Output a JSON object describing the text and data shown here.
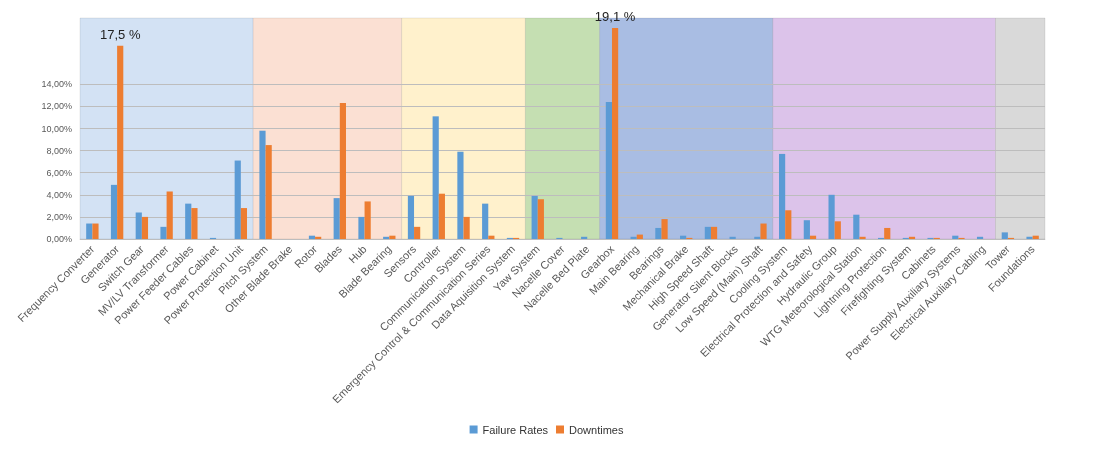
{
  "chart_data": {
    "type": "bar",
    "categories": [
      "Frequency Converter",
      "Generator",
      "Switch Gear",
      "MV/LV Transformer",
      "Power Feeder Cables",
      "Power Cabinet",
      "Power Protection Unit",
      "Pitch System",
      "Other Blade Brake",
      "Rotor",
      "Blades",
      "Hub",
      "Blade Bearing",
      "Sensors",
      "Controller",
      "Communication System",
      "Emergency Control & Communication Series",
      "Data Aquisition System",
      "Yaw System",
      "Nacelle Cover",
      "Nacelle Bed Plate",
      "Gearbox",
      "Main Bearing",
      "Bearings",
      "Mechanical Brake",
      "High Speed Shaft",
      "Generator Silent Blocks",
      "Low Speed (Main) Shaft",
      "Cooling System",
      "Electrical Protection and Safety",
      "Hydraulic Group",
      "WTG Meteorological Station",
      "Lightning Protection",
      "Firefighting System",
      "Cabinets",
      "Power Supply Auxiliary Systems",
      "Electrical Auxiliary Cabling",
      "Tower",
      "Foundations"
    ],
    "series": [
      {
        "name": "Failure Rates",
        "color": "#5b9bd5",
        "values": [
          1.4,
          4.9,
          2.4,
          1.1,
          3.2,
          0.1,
          7.1,
          9.8,
          0,
          0.3,
          3.7,
          2.0,
          0.2,
          3.9,
          11.1,
          7.9,
          3.2,
          0.1,
          3.9,
          0.1,
          0.2,
          12.4,
          0.2,
          1.0,
          0.3,
          1.1,
          0.2,
          0.2,
          7.7,
          1.7,
          4.0,
          2.2,
          0.1,
          0.1,
          0.1,
          0.3,
          0.2,
          0.6,
          0.2
        ]
      },
      {
        "name": "Downtimes",
        "color": "#ed7d31",
        "values": [
          1.4,
          17.5,
          2.0,
          4.3,
          2.8,
          0.0,
          2.8,
          8.5,
          0,
          0.2,
          12.3,
          3.4,
          0.3,
          1.1,
          4.1,
          2.0,
          0.3,
          0.1,
          3.6,
          0,
          0,
          19.1,
          0.4,
          1.8,
          0.1,
          1.1,
          0,
          1.4,
          2.6,
          0.3,
          1.6,
          0.2,
          1.0,
          0.2,
          0.1,
          0.1,
          0,
          0.1,
          0.3
        ],
        "value_labels": [
          null,
          "17,5 %",
          null,
          null,
          null,
          null,
          null,
          null,
          null,
          null,
          null,
          null,
          null,
          null,
          null,
          null,
          null,
          null,
          null,
          null,
          null,
          "19,1 %",
          null,
          null,
          null,
          null,
          null,
          null,
          null,
          null,
          null,
          null,
          null,
          null,
          null,
          null,
          null,
          null,
          null
        ]
      }
    ],
    "ylim": [
      0,
      20
    ],
    "yticks": [
      {
        "value": 0,
        "label": "0,00%"
      },
      {
        "value": 2,
        "label": "2,00%"
      },
      {
        "value": 4,
        "label": "4,00%"
      },
      {
        "value": 6,
        "label": "6,00%"
      },
      {
        "value": 8,
        "label": "8,00%"
      },
      {
        "value": 10,
        "label": "10,00%"
      },
      {
        "value": 12,
        "label": "12,00%"
      },
      {
        "value": 14,
        "label": "14,00%"
      }
    ],
    "bands": [
      {
        "axis": "x",
        "from": "Frequency Converter",
        "to": "Power Protection Unit",
        "color": "#d3e2f4"
      },
      {
        "axis": "x",
        "from": "Pitch System",
        "to": "Blade Bearing",
        "color": "#fbe0d3"
      },
      {
        "axis": "x",
        "from": "Sensors",
        "to": "Data Aquisition System",
        "color": "#fff1cc"
      },
      {
        "axis": "x",
        "from": "Yaw System",
        "to": "Nacelle Bed Plate",
        "color": "#c5dfb2"
      },
      {
        "axis": "x",
        "from": "Gearbox",
        "to": "Low Speed (Main) Shaft",
        "color": "#a9bde3"
      },
      {
        "axis": "x",
        "from": "Cooling System",
        "to": "Electrical Auxiliary Cabling",
        "color": "#dcc3ea"
      },
      {
        "axis": "x",
        "from": "Tower",
        "to": "Foundations",
        "color": "#d9d9d9"
      }
    ],
    "grid": "y",
    "legend": "bottom"
  }
}
